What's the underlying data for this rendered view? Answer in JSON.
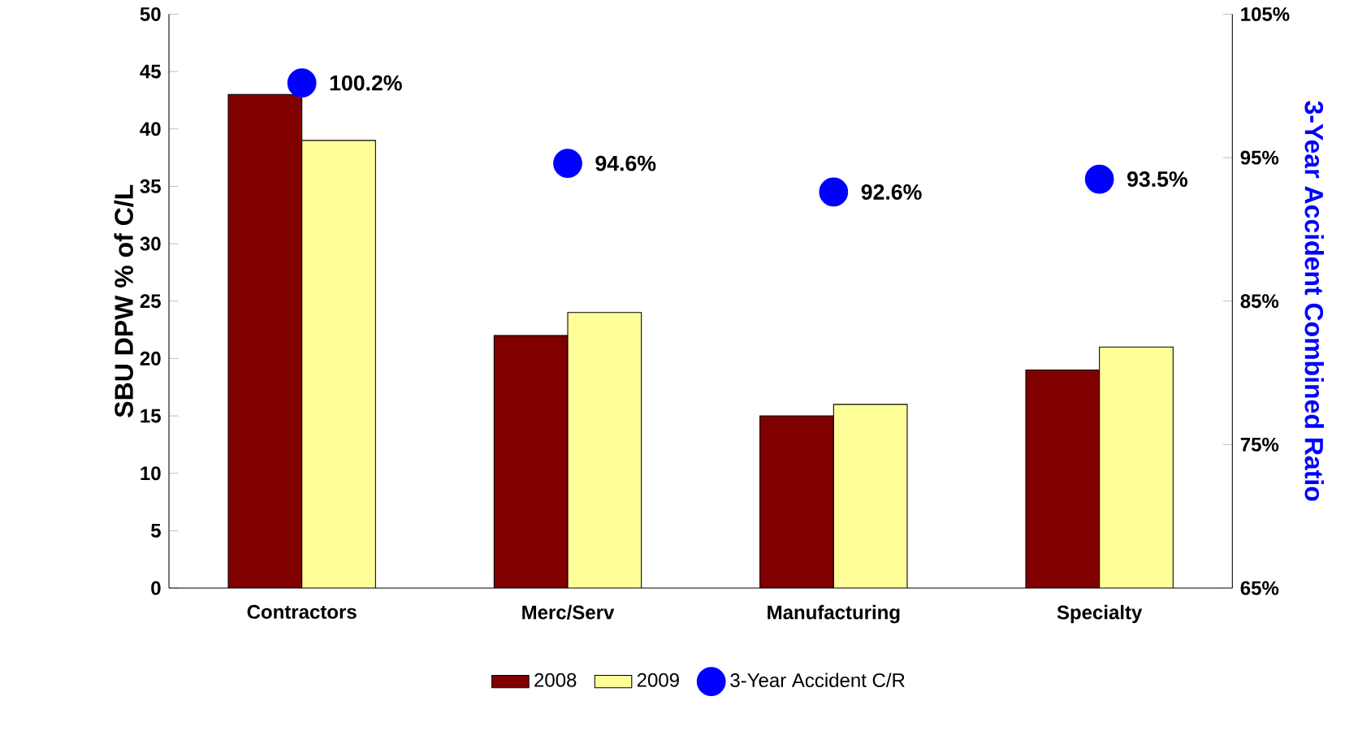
{
  "chart_data": {
    "type": "bar",
    "categories": [
      "Contractors",
      "Merc/Serv",
      "Manufacturing",
      "Specialty"
    ],
    "ylabel": "SBU DPW % of C/L",
    "y2label": "3-Year Accident Combined Ratio",
    "ylim": [
      0,
      50
    ],
    "yticks": [
      0,
      5,
      10,
      15,
      20,
      25,
      30,
      35,
      40,
      45,
      50
    ],
    "y2lim": [
      65,
      105
    ],
    "y2ticks": [
      {
        "value": 65,
        "label": "65%"
      },
      {
        "value": 75,
        "label": "75%"
      },
      {
        "value": 85,
        "label": "85%"
      },
      {
        "value": 95,
        "label": "95%"
      },
      {
        "value": 105,
        "label": "105%"
      }
    ],
    "series": [
      {
        "name": "2008",
        "color": "#800000",
        "values": [
          43,
          22,
          15,
          19
        ]
      },
      {
        "name": "2009",
        "color": "#ffff99",
        "values": [
          39,
          24,
          16,
          21
        ]
      },
      {
        "name": "3-Year Accident C/R",
        "type": "scatter",
        "axis": "y2",
        "color": "#0000ff",
        "values": [
          100.2,
          94.6,
          92.6,
          93.5
        ],
        "value_labels": [
          "100.2%",
          "94.6%",
          "92.6%",
          "93.5%"
        ]
      }
    ],
    "marker": "circle",
    "legend": "bottom",
    "grid": false
  }
}
